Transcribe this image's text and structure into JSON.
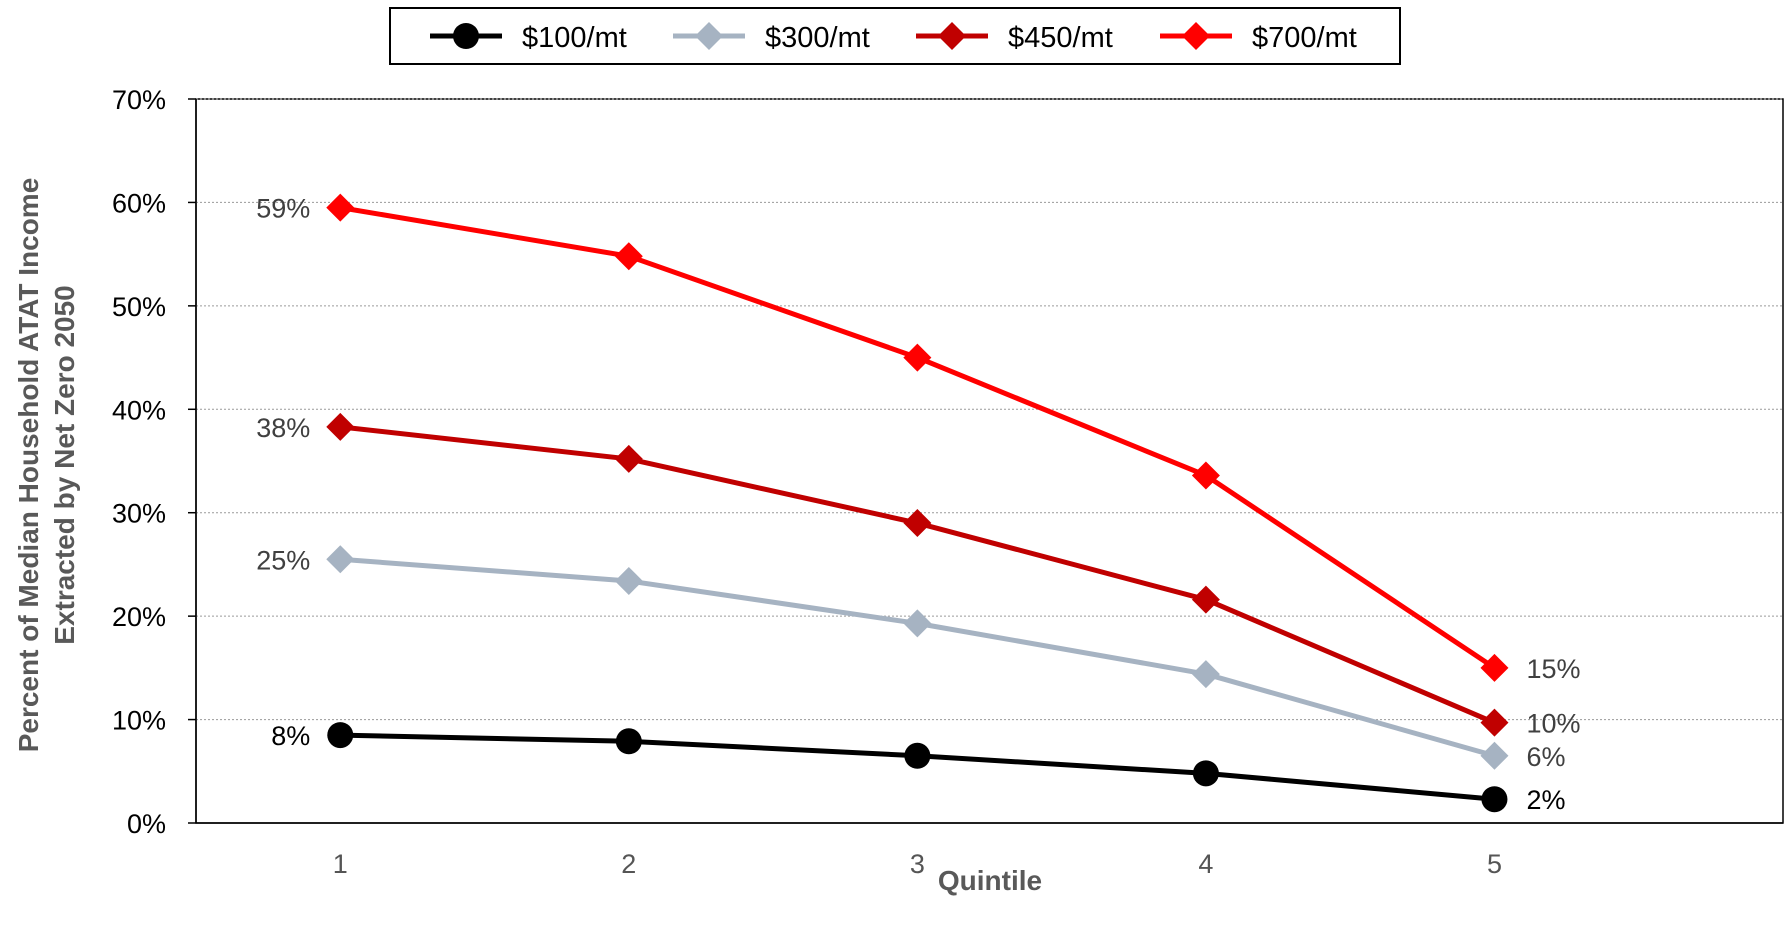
{
  "chart_data": {
    "type": "line",
    "xlabel": "Quintile",
    "ylabel_lines": [
      "Percent of Median Household ATAT Income",
      "Extracted by Net Zero 2050"
    ],
    "ylim": [
      0,
      0.7
    ],
    "yticks": [
      0,
      0.1,
      0.2,
      0.3,
      0.4,
      0.5,
      0.6,
      0.7
    ],
    "ytick_labels": [
      "0%",
      "10%",
      "20%",
      "30%",
      "40%",
      "50%",
      "60%",
      "70%"
    ],
    "xlim": [
      0.5,
      6
    ],
    "x": [
      1,
      2,
      3,
      4,
      5
    ],
    "xtick_labels": [
      "1",
      "2",
      "3",
      "4",
      "5"
    ],
    "grid": "horizontal dotted",
    "legend_position": "top-center",
    "series": [
      {
        "name": "$100/mt",
        "color": "#000000",
        "marker": "circle",
        "values": [
          0.085,
          0.079,
          0.065,
          0.048,
          0.023
        ],
        "first_label": "8%",
        "last_label": "2%",
        "label_color": "#000000"
      },
      {
        "name": "$300/mt",
        "color": "#A6B3C2",
        "marker": "diamond",
        "values": [
          0.255,
          0.234,
          0.193,
          0.144,
          0.065
        ],
        "first_label": "25%",
        "last_label": "6%",
        "label_color": "#404040"
      },
      {
        "name": "$450/mt",
        "color": "#C00000",
        "marker": "diamond",
        "values": [
          0.383,
          0.352,
          0.29,
          0.216,
          0.097
        ],
        "first_label": "38%",
        "last_label": "10%",
        "label_color": "#404040"
      },
      {
        "name": "$700/mt",
        "color": "#FF0000",
        "marker": "diamond",
        "values": [
          0.595,
          0.548,
          0.45,
          0.336,
          0.15
        ],
        "first_label": "59%",
        "last_label": "15%",
        "label_color": "#404040"
      }
    ]
  }
}
